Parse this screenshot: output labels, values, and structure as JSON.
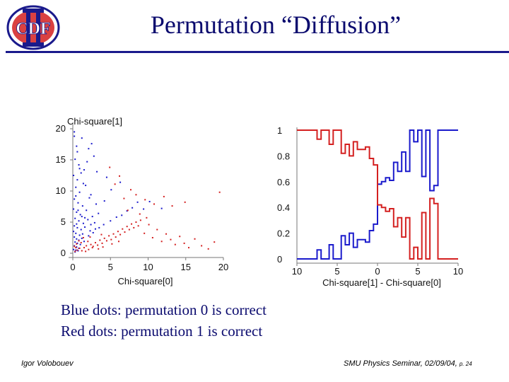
{
  "header": {
    "logo_text": "CDF",
    "logo_numeral": "II",
    "title": "Permutation “Diffusion”"
  },
  "captions": {
    "line1": "Blue dots: permutation 0 is correct",
    "line2": "Red dots: permutation 1 is correct"
  },
  "footer": {
    "author": "Igor Volobouev",
    "event": "SMU Physics Seminar, 02/09/04,",
    "page": "p. 24"
  },
  "colors": {
    "title": "#0a0a6e",
    "blue": "#1a1acc",
    "red": "#d42020",
    "rule": "#1a1a8c"
  },
  "chart_data": [
    {
      "type": "scatter",
      "title": "",
      "ylabel": "Chi-square[1]",
      "xlabel": "Chi-square[0]",
      "xlim": [
        0,
        20
      ],
      "ylim": [
        0,
        20
      ],
      "xticks": [
        "0",
        "5",
        "10",
        "15",
        "20"
      ],
      "yticks": [
        "0",
        "5",
        "10",
        "15",
        "20"
      ],
      "series": [
        {
          "name": "Blue dots: permutation 0 is correct",
          "color": "#1a1acc",
          "points": [
            [
              0.2,
              19.5
            ],
            [
              0.5,
              17.2
            ],
            [
              1.2,
              18.5
            ],
            [
              2.1,
              16.8
            ],
            [
              0.3,
              15.1
            ],
            [
              0.8,
              14.2
            ],
            [
              1.5,
              13.4
            ],
            [
              2.8,
              15.6
            ],
            [
              0.1,
              12.5
            ],
            [
              0.6,
              11.8
            ],
            [
              1.1,
              12.9
            ],
            [
              3.2,
              13.1
            ],
            [
              4.5,
              12.2
            ],
            [
              0.4,
              10.6
            ],
            [
              0.9,
              9.8
            ],
            [
              1.7,
              10.9
            ],
            [
              2.4,
              9.4
            ],
            [
              5.1,
              10.2
            ],
            [
              6.3,
              11.4
            ],
            [
              0.2,
              8.7
            ],
            [
              0.7,
              8.1
            ],
            [
              1.3,
              7.6
            ],
            [
              2.2,
              8.9
            ],
            [
              3.1,
              7.9
            ],
            [
              4.2,
              8.4
            ],
            [
              0.1,
              7.1
            ],
            [
              0.5,
              6.6
            ],
            [
              1.0,
              6.2
            ],
            [
              1.8,
              6.9
            ],
            [
              2.6,
              5.9
            ],
            [
              3.4,
              6.4
            ],
            [
              0.3,
              5.6
            ],
            [
              0.8,
              5.2
            ],
            [
              1.4,
              4.8
            ],
            [
              2.0,
              5.4
            ],
            [
              2.9,
              4.9
            ],
            [
              0.2,
              4.4
            ],
            [
              0.6,
              4.1
            ],
            [
              1.1,
              3.8
            ],
            [
              1.6,
              4.2
            ],
            [
              2.3,
              3.6
            ],
            [
              0.1,
              3.5
            ],
            [
              0.4,
              3.2
            ],
            [
              0.9,
              2.9
            ],
            [
              1.3,
              3.1
            ],
            [
              0.2,
              2.6
            ],
            [
              0.5,
              2.3
            ],
            [
              0.8,
              2.1
            ],
            [
              1.2,
              2.4
            ],
            [
              0.3,
              1.8
            ],
            [
              0.6,
              1.6
            ],
            [
              1.0,
              1.4
            ],
            [
              0.2,
              1.2
            ],
            [
              0.5,
              1.0
            ],
            [
              0.8,
              0.8
            ],
            [
              0.1,
              0.6
            ],
            [
              0.4,
              0.5
            ],
            [
              0.7,
              0.4
            ],
            [
              0.3,
              0.2
            ],
            [
              1.5,
              1.9
            ],
            [
              2.1,
              2.8
            ],
            [
              2.7,
              3.3
            ],
            [
              3.5,
              4.1
            ],
            [
              4.1,
              4.6
            ],
            [
              5.0,
              5.2
            ],
            [
              5.8,
              5.8
            ],
            [
              6.5,
              6.1
            ],
            [
              7.2,
              6.8
            ],
            [
              7.9,
              7.3
            ],
            [
              8.6,
              8.2
            ],
            [
              9.4,
              7.1
            ],
            [
              10.2,
              8.3
            ],
            [
              11.8,
              7.2
            ],
            [
              0.4,
              9.2
            ],
            [
              0.9,
              13.6
            ],
            [
              1.9,
              14.7
            ],
            [
              0.6,
              16.3
            ],
            [
              2.5,
              17.6
            ],
            [
              0.2,
              18.8
            ],
            [
              1.4,
              11.2
            ],
            [
              0.7,
              6.9
            ],
            [
              1.6,
              5.7
            ],
            [
              2.4,
              4.6
            ],
            [
              3.0,
              3.9
            ],
            [
              0.5,
              4.7
            ],
            [
              1.2,
              5.9
            ]
          ]
        },
        {
          "name": "Red dots: permutation 1 is correct",
          "color": "#d42020",
          "points": [
            [
              0.3,
              0.3
            ],
            [
              0.6,
              0.5
            ],
            [
              0.9,
              0.8
            ],
            [
              1.2,
              0.4
            ],
            [
              1.5,
              0.9
            ],
            [
              1.8,
              1.2
            ],
            [
              2.1,
              0.6
            ],
            [
              2.4,
              1.4
            ],
            [
              2.7,
              1.1
            ],
            [
              3.0,
              1.7
            ],
            [
              3.3,
              1.3
            ],
            [
              3.6,
              2.1
            ],
            [
              3.9,
              1.6
            ],
            [
              4.2,
              2.4
            ],
            [
              4.5,
              2.0
            ],
            [
              4.8,
              2.8
            ],
            [
              5.1,
              2.2
            ],
            [
              5.4,
              3.1
            ],
            [
              5.7,
              2.6
            ],
            [
              6.0,
              3.5
            ],
            [
              6.3,
              3.0
            ],
            [
              6.6,
              3.9
            ],
            [
              6.9,
              3.4
            ],
            [
              7.2,
              4.3
            ],
            [
              7.5,
              3.8
            ],
            [
              7.8,
              4.7
            ],
            [
              8.1,
              4.1
            ],
            [
              8.4,
              5.0
            ],
            [
              8.7,
              4.4
            ],
            [
              9.0,
              5.3
            ],
            [
              9.5,
              3.2
            ],
            [
              10.1,
              4.6
            ],
            [
              10.6,
              2.5
            ],
            [
              11.2,
              3.8
            ],
            [
              11.8,
              1.9
            ],
            [
              12.4,
              3.1
            ],
            [
              13.0,
              2.2
            ],
            [
              13.6,
              1.4
            ],
            [
              14.2,
              2.7
            ],
            [
              14.8,
              1.6
            ],
            [
              15.4,
              0.9
            ],
            [
              16.2,
              2.3
            ],
            [
              17.1,
              1.2
            ],
            [
              18.0,
              0.7
            ],
            [
              18.8,
              1.8
            ],
            [
              19.5,
              9.8
            ],
            [
              14.9,
              8.2
            ],
            [
              13.2,
              7.6
            ],
            [
              12.1,
              9.1
            ],
            [
              10.8,
              7.9
            ],
            [
              9.6,
              8.6
            ],
            [
              8.4,
              9.4
            ],
            [
              7.7,
              10.2
            ],
            [
              6.2,
              12.4
            ],
            [
              5.6,
              11.1
            ],
            [
              4.9,
              13.8
            ],
            [
              6.8,
              8.8
            ],
            [
              7.3,
              6.9
            ],
            [
              8.9,
              6.3
            ],
            [
              9.8,
              5.7
            ],
            [
              0.5,
              1.5
            ],
            [
              0.8,
              2.0
            ],
            [
              1.1,
              1.7
            ],
            [
              1.4,
              2.5
            ],
            [
              0.2,
              1.1
            ],
            [
              2.0,
              1.9
            ],
            [
              2.6,
              0.9
            ],
            [
              3.4,
              0.7
            ],
            [
              4.0,
              1.0
            ],
            [
              5.2,
              1.5
            ],
            [
              6.1,
              1.9
            ],
            [
              1.7,
              0.3
            ],
            [
              2.3,
              2.6
            ],
            [
              3.8,
              3.0
            ],
            [
              0.4,
              0.9
            ]
          ]
        }
      ]
    },
    {
      "type": "line",
      "title": "",
      "xlabel": "Chi-square[1] - Chi-square[0]",
      "ylabel": "",
      "xlim": [
        -10,
        10
      ],
      "ylim": [
        0,
        1
      ],
      "xticks": [
        "10",
        "5",
        "0",
        "5",
        "10"
      ],
      "yticks": [
        "0",
        "0.2",
        "0.4",
        "0.6",
        "0.8",
        "1"
      ],
      "x": [
        -10.0,
        -9.5,
        -9.0,
        -8.5,
        -8.0,
        -7.5,
        -7.0,
        -6.5,
        -6.0,
        -5.5,
        -5.0,
        -4.5,
        -4.0,
        -3.5,
        -3.0,
        -2.5,
        -2.0,
        -1.5,
        -1.0,
        -0.5,
        0.0,
        0.5,
        1.0,
        1.5,
        2.0,
        2.5,
        3.0,
        3.5,
        4.0,
        4.5,
        5.0,
        5.5,
        6.0,
        6.5,
        7.0,
        7.5,
        8.0,
        8.5,
        9.0,
        9.5,
        10.0
      ],
      "series": [
        {
          "name": "",
          "color": "#1a1acc",
          "values": [
            0,
            0,
            0,
            0,
            0,
            0.07,
            0,
            0,
            0.11,
            0,
            0,
            0.18,
            0.11,
            0.2,
            0.09,
            0.15,
            0.15,
            0.13,
            0.22,
            0.27,
            0.58,
            0.6,
            0.63,
            0.61,
            0.75,
            0.68,
            0.83,
            0.68,
            1,
            0.91,
            1,
            0.64,
            1,
            0.53,
            0.57,
            1,
            1,
            1,
            1,
            1,
            1
          ]
        },
        {
          "name": "",
          "color": "#d42020",
          "values": [
            1,
            1,
            1,
            1,
            1,
            0.93,
            1,
            1,
            0.89,
            1,
            1,
            0.82,
            0.89,
            0.8,
            0.91,
            0.85,
            0.85,
            0.87,
            0.78,
            0.73,
            0.42,
            0.4,
            0.37,
            0.39,
            0.25,
            0.32,
            0.17,
            0.32,
            0,
            0.09,
            0,
            0.36,
            0,
            0.47,
            0.43,
            0,
            0,
            0,
            0,
            0,
            0
          ]
        }
      ]
    }
  ]
}
